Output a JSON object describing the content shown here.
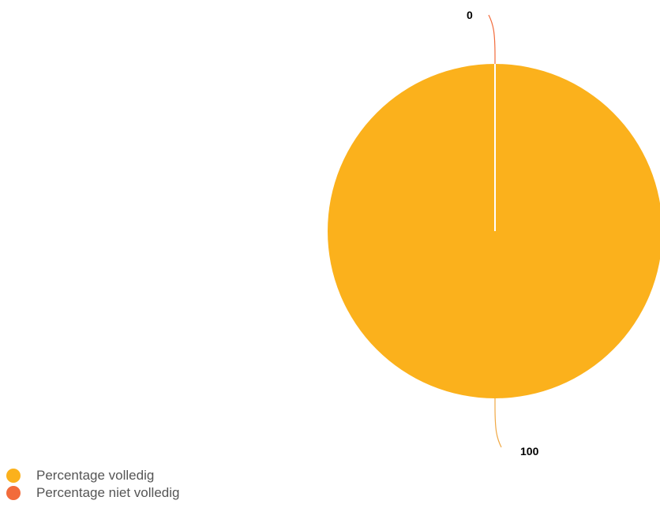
{
  "chart_data": {
    "type": "pie",
    "categories": [
      "Percentage volledig",
      "Percentage niet volledig"
    ],
    "values": [
      100,
      0
    ],
    "colors": [
      "#FBB11C",
      "#F26B3B"
    ],
    "data_labels": [
      "100",
      "0"
    ],
    "legend": {
      "placement": "bottom-left",
      "entries": [
        "Percentage volledig",
        "Percentage niet volledig"
      ]
    },
    "title": "",
    "leader_line_color": "#F0A844"
  }
}
